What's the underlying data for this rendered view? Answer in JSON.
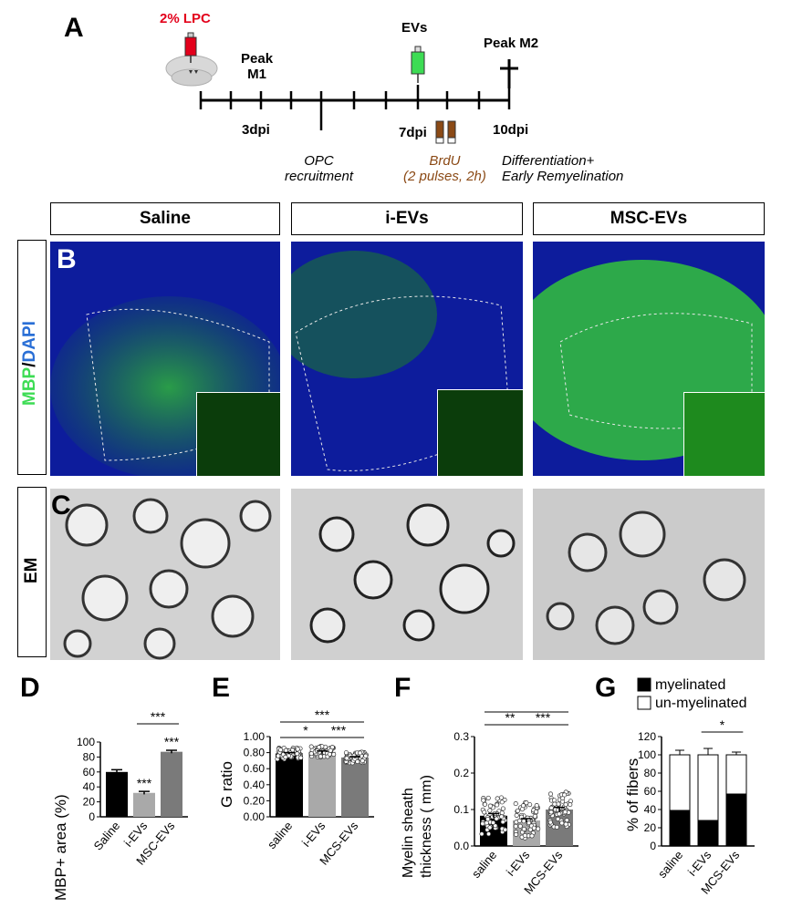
{
  "panel_a": {
    "letter": "A",
    "lpc": "2% LPC",
    "peak_m1_line1": "Peak",
    "peak_m1_line2": "M1",
    "evs": "EVs",
    "peak_m2": "Peak M2",
    "dpi3": "3dpi",
    "dpi7": "7dpi",
    "dpi10": "10dpi",
    "opc_line1": "OPC",
    "opc_line2": "recruitment",
    "brdu_line1": "BrdU",
    "brdu_line2": "(2 pulses, 2h)",
    "diff_line1": "Differentiation+",
    "diff_line2": "Early Remyelination",
    "colors": {
      "lpc_red": "#e3001b",
      "brdu_brown": "#8b4a16",
      "evs_green": "#3ddc54"
    }
  },
  "groups": [
    "Saline",
    "i-EVs",
    "MSC-EVs"
  ],
  "panel_b": {
    "letter": "B",
    "stain_mbp": "MBP",
    "stain_slash": "/",
    "stain_dapi": "DAPI"
  },
  "panel_c": {
    "letter": "C",
    "label": "EM"
  },
  "panel_d": {
    "letter": "D",
    "chart_data": {
      "type": "bar",
      "categories": [
        "Saline",
        "i-EVs",
        "MSC-EVs"
      ],
      "values": [
        60,
        32,
        87
      ],
      "errors": [
        3,
        2,
        2
      ],
      "colors": [
        "#000000",
        "#a9a9a9",
        "#7a7a7a"
      ],
      "ylabel": "MBP+ area (%)",
      "ylim": [
        0,
        100
      ],
      "yticks": [
        0,
        20,
        40,
        60,
        80,
        100
      ],
      "significance": [
        {
          "label": "***",
          "bar": 1
        },
        {
          "label": "***",
          "bar": 2
        },
        {
          "label": "***",
          "from": 1,
          "to": 2
        }
      ]
    }
  },
  "panel_e": {
    "letter": "E",
    "chart_data": {
      "type": "bar",
      "categories": [
        "saline",
        "i-EVs",
        "MCS-EVs"
      ],
      "values": [
        0.79,
        0.81,
        0.74
      ],
      "errors": [
        0.01,
        0.01,
        0.01
      ],
      "colors": [
        "#000000",
        "#a9a9a9",
        "#7a7a7a"
      ],
      "ylabel": "G ratio",
      "ylim": [
        0,
        1.0
      ],
      "yticks": [
        "0.00",
        "0.20",
        "0.40",
        "0.60",
        "0.80",
        "1.00"
      ],
      "significance": [
        {
          "label": "*",
          "from": 0,
          "to": 1
        },
        {
          "label": "***",
          "from": 1,
          "to": 2
        },
        {
          "label": "***",
          "from": 0,
          "to": 2
        }
      ]
    }
  },
  "panel_f": {
    "letter": "F",
    "chart_data": {
      "type": "bar",
      "categories": [
        "saline",
        "i-EVs",
        "MCS-EVs"
      ],
      "values": [
        0.083,
        0.07,
        0.1
      ],
      "errors": [
        0.006,
        0.005,
        0.006
      ],
      "colors": [
        "#000000",
        "#a9a9a9",
        "#7a7a7a"
      ],
      "ylabel_line1": "Myelin sheath",
      "ylabel_line2": "thickness ( mm)",
      "ylim": [
        0,
        0.3
      ],
      "yticks": [
        "0.0",
        "0.1",
        "0.2",
        "0.3"
      ],
      "significance": [
        {
          "label": "**",
          "from": 0,
          "to": 1
        },
        {
          "label": "***",
          "from": 1,
          "to": 2
        },
        {
          "label": "***",
          "from": 0,
          "to": 2
        }
      ]
    }
  },
  "panel_g": {
    "letter": "G",
    "chart_data": {
      "type": "bar",
      "stacked": true,
      "categories": [
        "saline",
        "i-EVs",
        "MCS-EVs"
      ],
      "series": [
        {
          "name": "myelinated",
          "values": [
            39,
            28,
            57
          ],
          "errors": [
            5,
            7,
            4
          ],
          "color": "#000000"
        },
        {
          "name": "un-myelinated",
          "values": [
            61,
            72,
            43
          ],
          "errors": [
            5,
            7,
            3
          ],
          "color": "#ffffff"
        }
      ],
      "ylabel": "% of fibers",
      "ylim": [
        0,
        120
      ],
      "yticks": [
        0,
        20,
        40,
        60,
        80,
        100,
        120
      ],
      "significance": [
        {
          "label": "*",
          "from": 1,
          "to": 2
        }
      ]
    }
  }
}
